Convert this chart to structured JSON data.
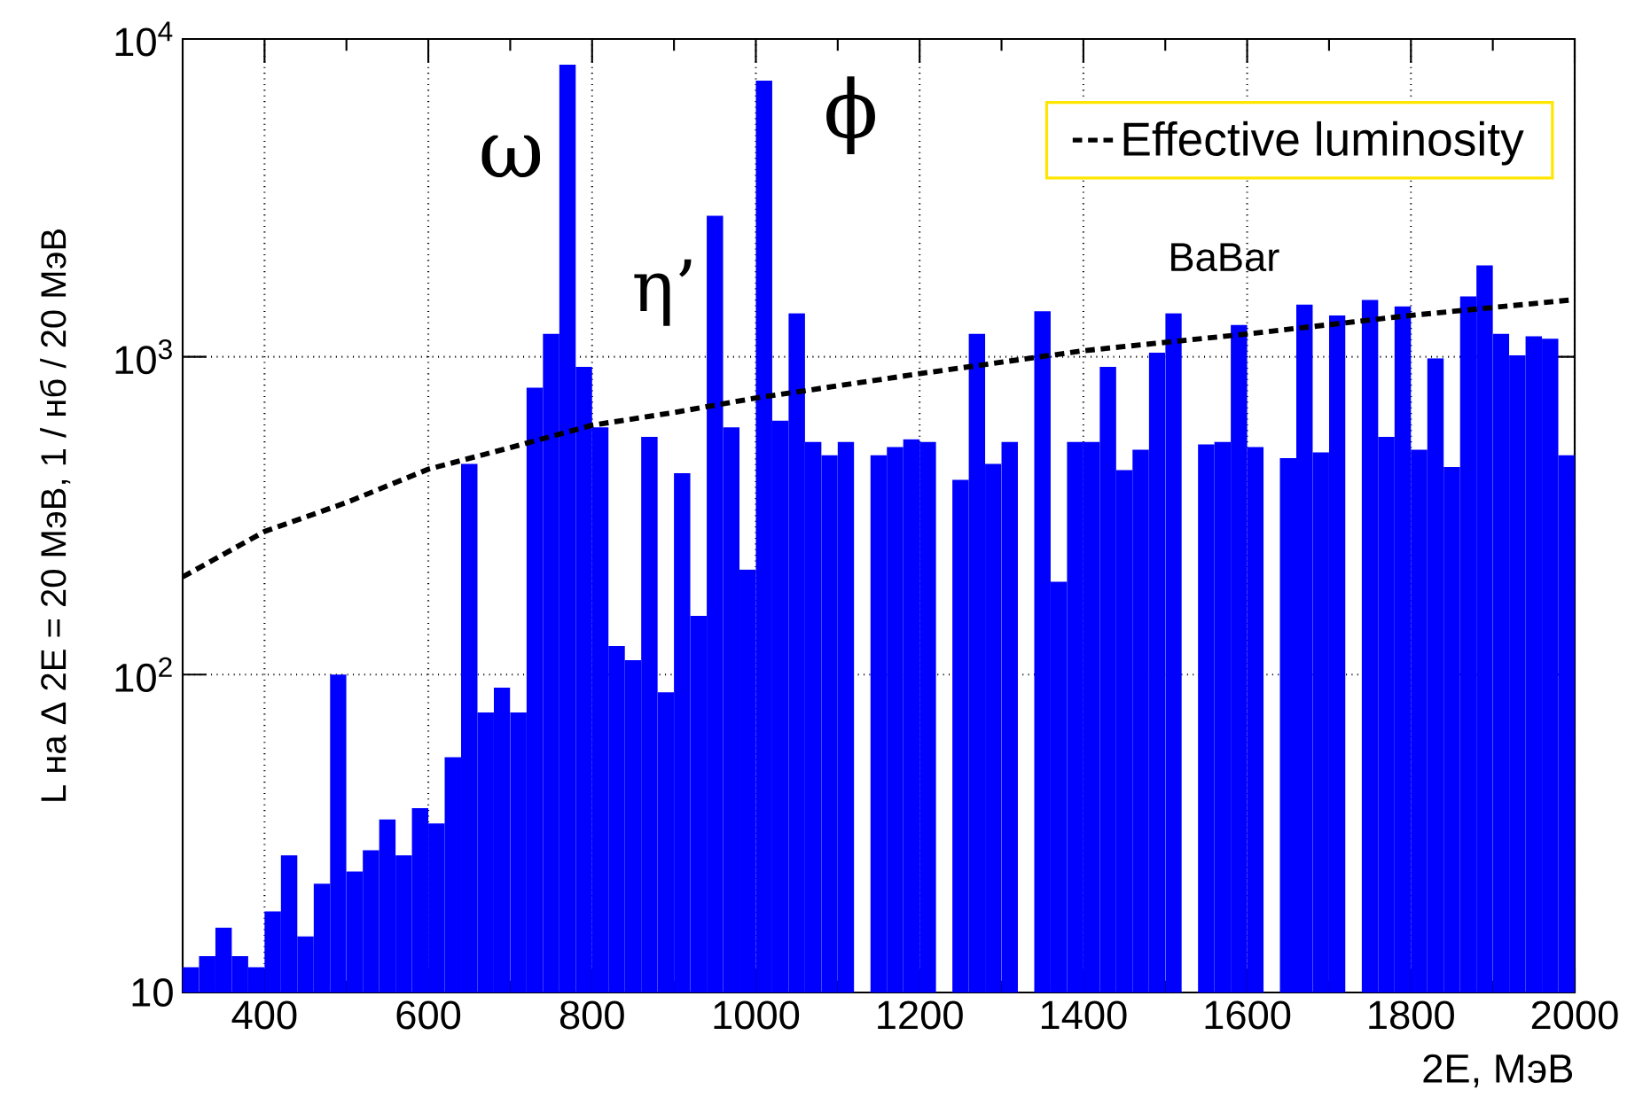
{
  "chart_data": {
    "type": "histogram",
    "xlabel": "2E, МэВ",
    "ylabel": "L на Δ 2E = 20 МэВ, 1 / нб / 20 МэВ",
    "bins": [
      300,
      320,
      340,
      360,
      380,
      400,
      420,
      440,
      460,
      480,
      500,
      520,
      540,
      560,
      580,
      600,
      620,
      640,
      660,
      680,
      700,
      720,
      740,
      760,
      780,
      800,
      820,
      840,
      860,
      880,
      900,
      920,
      940,
      960,
      980,
      1000,
      1020,
      1040,
      1060,
      1080,
      1100,
      1120,
      1140,
      1160,
      1180,
      1200,
      1220,
      1240,
      1260,
      1280,
      1300,
      1320,
      1340,
      1360,
      1380,
      1400,
      1420,
      1440,
      1460,
      1480,
      1500,
      1520,
      1540,
      1560,
      1580,
      1600,
      1620,
      1640,
      1660,
      1680,
      1700,
      1720,
      1740,
      1760,
      1780,
      1800,
      1820,
      1840,
      1860,
      1880,
      1900,
      1920,
      1940,
      1960,
      1980,
      2000
    ],
    "series": [
      {
        "color": "#0000ff",
        "values": [
          12,
          13,
          16,
          13,
          12,
          18,
          27,
          15,
          22,
          100,
          24,
          28,
          35,
          27,
          38,
          34,
          55,
          460,
          76,
          91,
          76,
          800,
          1180,
          8300,
          930,
          600,
          123,
          111,
          560,
          88,
          430,
          153,
          2780,
          600,
          214,
          7400,
          630,
          1370,
          540,
          490,
          540,
          null,
          490,
          520,
          550,
          540,
          null,
          410,
          1180,
          460,
          540,
          null,
          1390,
          196,
          540,
          540,
          930,
          440,
          510,
          1030,
          1370,
          null,
          530,
          540,
          1260,
          520,
          null,
          480,
          1460,
          500,
          1350,
          null,
          1510,
          560,
          1440,
          510,
          990,
          450,
          1550,
          1940,
          1180,
          1010,
          1160,
          1140,
          490
        ]
      },
      {
        "type": "line",
        "name": "Effective luminosity",
        "color": "#000000",
        "line_style": "dashed",
        "x": [
          300,
          400,
          500,
          600,
          700,
          800,
          900,
          1000,
          1200,
          1400,
          1600,
          1800,
          2000
        ],
        "values": [
          203,
          282,
          348,
          443,
          518,
          609,
          668,
          742,
          885,
          1045,
          1180,
          1350,
          1514
        ]
      }
    ],
    "xlim": [
      300,
      2000
    ],
    "ylim": [
      10,
      10000
    ],
    "xticks": [
      400,
      600,
      800,
      1000,
      1200,
      1400,
      1600,
      1800,
      2000
    ],
    "yticks": [
      10,
      {
        "value": 100,
        "label": "10$^{2}$"
      },
      {
        "value": 1000,
        "label": "10$^{3}$"
      },
      {
        "value": 10000,
        "label": "10$^{4}$"
      }
    ],
    "log": "y",
    "grid": true,
    "legend": "top right",
    "annotations": [
      "ω",
      "η’",
      "ϕ",
      "BaBar"
    ]
  }
}
